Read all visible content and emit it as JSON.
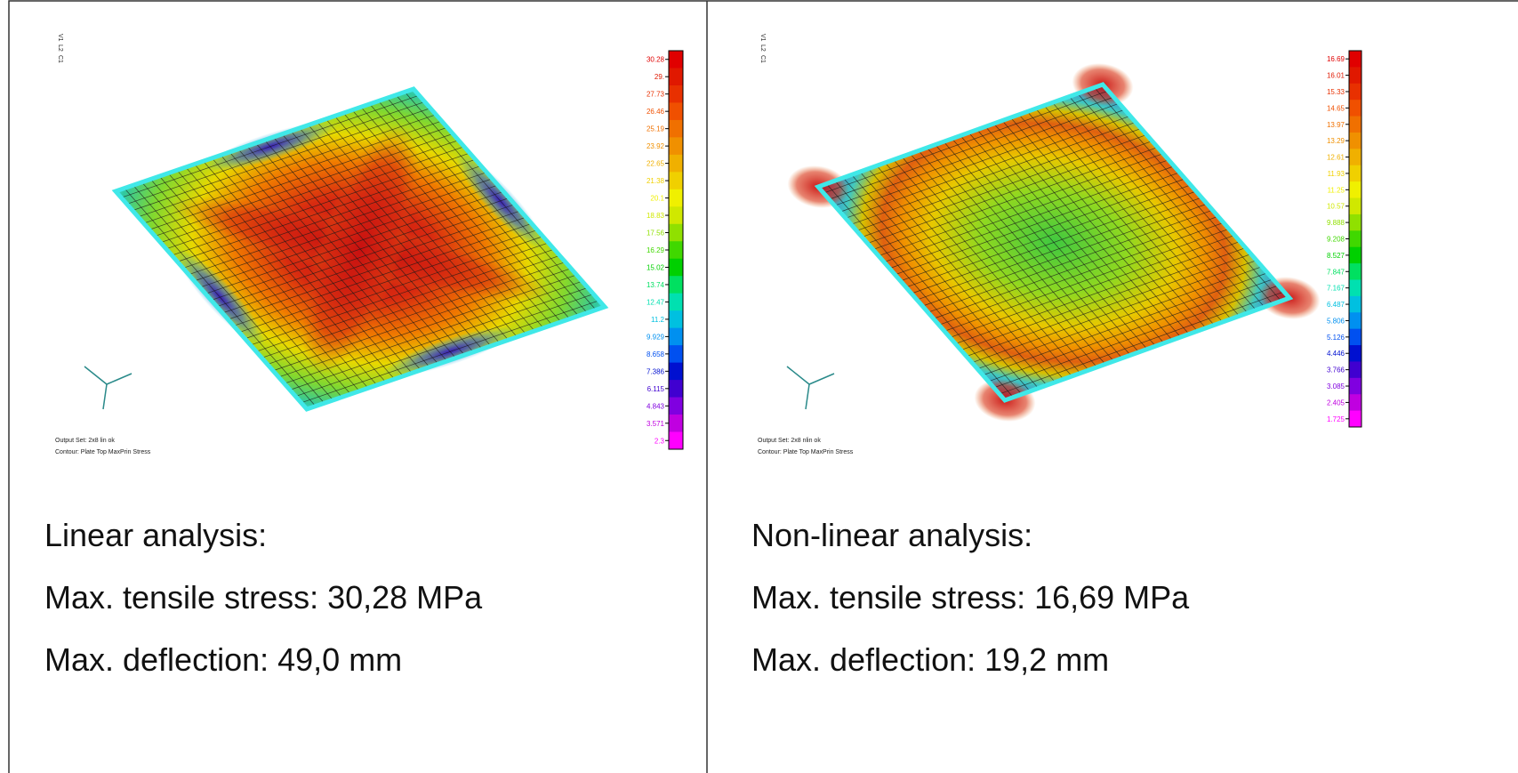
{
  "panels": [
    {
      "view_labels": [
        "V1",
        "L2",
        "C1"
      ],
      "legend": [
        "30.28",
        "29.",
        "27.73",
        "26.46",
        "25.19",
        "23.92",
        "22.65",
        "21.38",
        "20.1",
        "18.83",
        "17.56",
        "16.29",
        "15.02",
        "13.74",
        "12.47",
        "11.2",
        "9.929",
        "8.658",
        "7.386",
        "6.115",
        "4.843",
        "3.571",
        "2.3"
      ],
      "output_set": "Output Set: 2x8 lin ok",
      "contour": "Contour: Plate Top MaxPrin Stress",
      "heading": "Linear analysis:",
      "stress": "Max. tensile stress: 30,28 MPa",
      "deflection": "Max. deflection: 49,0 mm"
    },
    {
      "view_labels": [
        "V1",
        "L2",
        "C1"
      ],
      "legend": [
        "16.69",
        "16.01",
        "15.33",
        "14.65",
        "13.97",
        "13.29",
        "12.61",
        "11.93",
        "11.25",
        "10.57",
        "9.888",
        "9.208",
        "8.527",
        "7.847",
        "7.167",
        "6.487",
        "5.806",
        "5.126",
        "4.446",
        "3.766",
        "3.085",
        "2.405",
        "1.725"
      ],
      "output_set": "Output Set: 2x8 nlin ok",
      "contour": "Contour: Plate Top MaxPrin Stress",
      "heading": "Non-linear analysis:",
      "stress": "Max. tensile stress: 16,69 MPa",
      "deflection": "Max. deflection: 19,2 mm"
    }
  ]
}
